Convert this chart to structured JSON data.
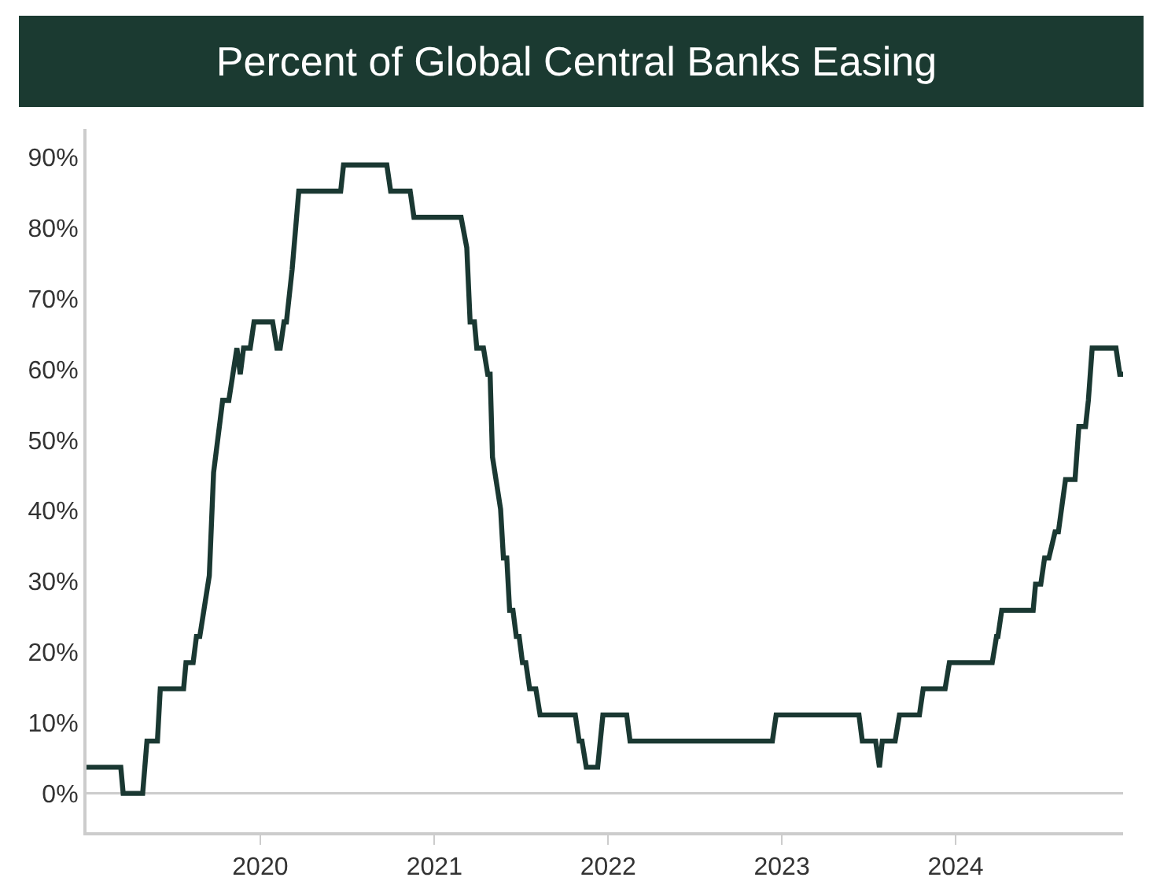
{
  "chart_data": {
    "type": "line",
    "title": "Percent of Global Central Banks Easing",
    "x": [
      "2019-01-01",
      "2019-03-14",
      "2019-03-19",
      "2019-04-29",
      "2019-05-08",
      "2019-05-30",
      "2019-06-05",
      "2019-07-24",
      "2019-07-29",
      "2019-08-13",
      "2019-08-20",
      "2019-08-27",
      "2019-09-16",
      "2019-09-25",
      "2019-10-09",
      "2019-10-14",
      "2019-10-27",
      "2019-11-13",
      "2019-11-20",
      "2019-11-27",
      "2019-12-11",
      "2019-12-19",
      "2020-01-27",
      "2020-02-05",
      "2020-02-12",
      "2020-02-20",
      "2020-02-25",
      "2020-03-08",
      "2020-03-22",
      "2020-06-18",
      "2020-06-24",
      "2020-09-23",
      "2020-10-01",
      "2020-11-11",
      "2020-11-19",
      "2021-02-26",
      "2021-03-10",
      "2021-03-17",
      "2021-03-26",
      "2021-03-31",
      "2021-04-14",
      "2021-04-23",
      "2021-04-28",
      "2021-05-03",
      "2021-05-20",
      "2021-05-26",
      "2021-06-02",
      "2021-06-08",
      "2021-06-15",
      "2021-06-22",
      "2021-06-28",
      "2021-07-05",
      "2021-07-12",
      "2021-07-20",
      "2021-08-02",
      "2021-08-11",
      "2021-10-24",
      "2021-11-01",
      "2021-11-07",
      "2021-11-16",
      "2021-12-10",
      "2021-12-21",
      "2022-02-09",
      "2022-02-16",
      "2022-12-12",
      "2022-12-20",
      "2023-06-12",
      "2023-06-19",
      "2023-07-17",
      "2023-07-25",
      "2023-07-31",
      "2023-08-27",
      "2023-09-05",
      "2023-10-17",
      "2023-10-25",
      "2023-12-10",
      "2023-12-19",
      "2024-03-18",
      "2024-03-27",
      "2024-03-30",
      "2024-04-07",
      "2024-06-12",
      "2024-06-17",
      "2024-06-28",
      "2024-07-06",
      "2024-07-15",
      "2024-07-28",
      "2024-08-04",
      "2024-08-19",
      "2024-09-08",
      "2024-09-16",
      "2024-09-30",
      "2024-10-06",
      "2024-10-14",
      "2024-12-03",
      "2024-12-11",
      "2024-12-18"
    ],
    "series": [
      {
        "color": "#1a3832",
        "values": [
          3.7,
          3.7,
          0,
          0,
          7.4,
          7.4,
          14.8,
          14.8,
          18.5,
          18.5,
          22.2,
          22.2,
          30.8,
          45.4,
          52.9,
          55.6,
          55.6,
          63.0,
          59.3,
          63.0,
          63.0,
          66.7,
          66.7,
          63.0,
          63.0,
          66.7,
          66.7,
          74.1,
          85.2,
          85.2,
          88.9,
          88.9,
          85.2,
          85.2,
          81.5,
          81.5,
          77.2,
          66.7,
          66.7,
          63.0,
          63.0,
          59.3,
          59.3,
          47.6,
          40.2,
          33.3,
          33.3,
          25.9,
          25.9,
          22.2,
          22.2,
          18.5,
          18.5,
          14.8,
          14.8,
          11.1,
          11.1,
          7.4,
          7.4,
          3.7,
          3.7,
          11.1,
          11.1,
          7.4,
          7.4,
          11.1,
          11.1,
          7.4,
          7.4,
          3.7,
          7.4,
          7.4,
          11.1,
          11.1,
          14.8,
          14.8,
          18.5,
          18.5,
          22.2,
          22.2,
          25.9,
          25.9,
          29.6,
          29.6,
          33.3,
          33.3,
          37.0,
          37.0,
          44.4,
          44.4,
          51.9,
          51.9,
          55.6,
          63.0,
          63.0,
          59.3,
          59.3
        ]
      }
    ],
    "xlim": [
      "2019-01-01",
      "2024-12-18"
    ],
    "xticks": [
      {
        "value": "2020-01-01",
        "label": "2020"
      },
      {
        "value": "2021-01-01",
        "label": "2021"
      },
      {
        "value": "2022-01-01",
        "label": "2022"
      },
      {
        "value": "2023-01-01",
        "label": "2023"
      },
      {
        "value": "2024-01-01",
        "label": "2024"
      }
    ],
    "ylim": [
      -5.5,
      94
    ],
    "yticks": [
      {
        "value": 0,
        "label": "0%"
      },
      {
        "value": 10,
        "label": "10%"
      },
      {
        "value": 20,
        "label": "20%"
      },
      {
        "value": 30,
        "label": "30%"
      },
      {
        "value": 40,
        "label": "40%"
      },
      {
        "value": 50,
        "label": "50%"
      },
      {
        "value": 60,
        "label": "60%"
      },
      {
        "value": 70,
        "label": "70%"
      },
      {
        "value": 80,
        "label": "80%"
      },
      {
        "value": 90,
        "label": "90%"
      }
    ],
    "ref_lines": [
      {
        "axis": "y",
        "value": 0,
        "color": "#cccccc"
      }
    ],
    "grid": false,
    "marker": "none",
    "line_style": "solid"
  }
}
